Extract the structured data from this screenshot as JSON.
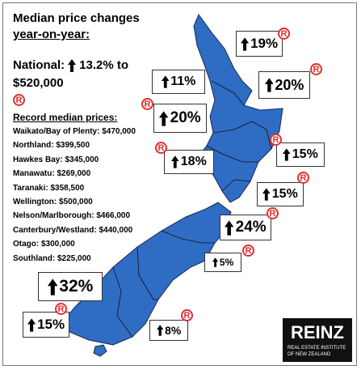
{
  "header": {
    "title": "Median price changes",
    "subtitle": "year-on-year:"
  },
  "national": {
    "label": "National:",
    "change": "13.2% to",
    "price": "$520,000"
  },
  "record_marker": "R",
  "record_prices": {
    "heading": "Record median prices:",
    "items": [
      "Waikato/Bay of Plenty: $470,000",
      "Northland: $399,500",
      "Hawkes Bay: $345,000",
      "Manawatu: $269,000",
      "Taranaki: $358,500",
      "Wellington: $500,000",
      "Nelson/Marlborough: $466,000",
      "Canterbury/Westland: $440,000",
      "Otago: $300,000",
      "Southland: $225,000"
    ]
  },
  "callouts": [
    {
      "text": "19%",
      "record": true
    },
    {
      "text": "11%",
      "record": false
    },
    {
      "text": "20%",
      "record": true
    },
    {
      "text": "20%",
      "record": true
    },
    {
      "text": "15%",
      "record": true
    },
    {
      "text": "18%",
      "record": true
    },
    {
      "text": "15%",
      "record": true
    },
    {
      "text": "24%",
      "record": true
    },
    {
      "text": "5%",
      "record": true
    },
    {
      "text": "32%",
      "record": false
    },
    {
      "text": "15%",
      "record": true
    },
    {
      "text": "8%",
      "record": true
    }
  ],
  "logo": {
    "name": "REINZ",
    "tagline": [
      "REAL ESTATE INSTITUTE",
      "OF NEW ZEALAND"
    ]
  }
}
